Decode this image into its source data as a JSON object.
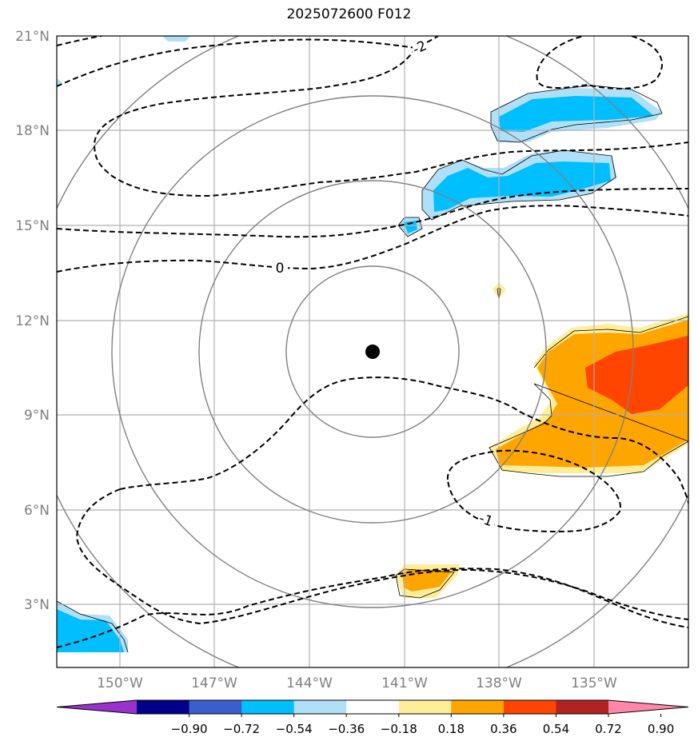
{
  "title": "2025072600 F012",
  "map": {
    "lat_labels": [
      "21°N",
      "18°N",
      "15°N",
      "12°N",
      "9°N",
      "6°N",
      "3°N"
    ],
    "lon_labels": [
      "150°W",
      "147°W",
      "144°W",
      "141°W",
      "138°W",
      "135°W"
    ],
    "center_marker": {
      "lat": 11.0,
      "lon": -142.0
    },
    "contour_labels": [
      "-2",
      "0",
      "-1"
    ],
    "colors": {
      "light_blue": "#b0e0f8",
      "blue": "#00bfff",
      "yellow": "#ffee99",
      "orange": "#ffa500",
      "red_orange": "#ff4500",
      "grid": "#b0b0b0",
      "range_rings": "#808080"
    }
  },
  "colorbar": {
    "colors": [
      "#9932cc",
      "#00008b",
      "#3a5fcd",
      "#00bfff",
      "#b0e0f8",
      "#ffffff",
      "#ffee99",
      "#ffa500",
      "#ff4500",
      "#b22222",
      "#ff88aa"
    ],
    "tick_labels": [
      "−0.90",
      "−0.72",
      "−0.54",
      "−0.36",
      "−0.18",
      "0.18",
      "0.36",
      "0.54",
      "0.72",
      "0.90"
    ]
  }
}
